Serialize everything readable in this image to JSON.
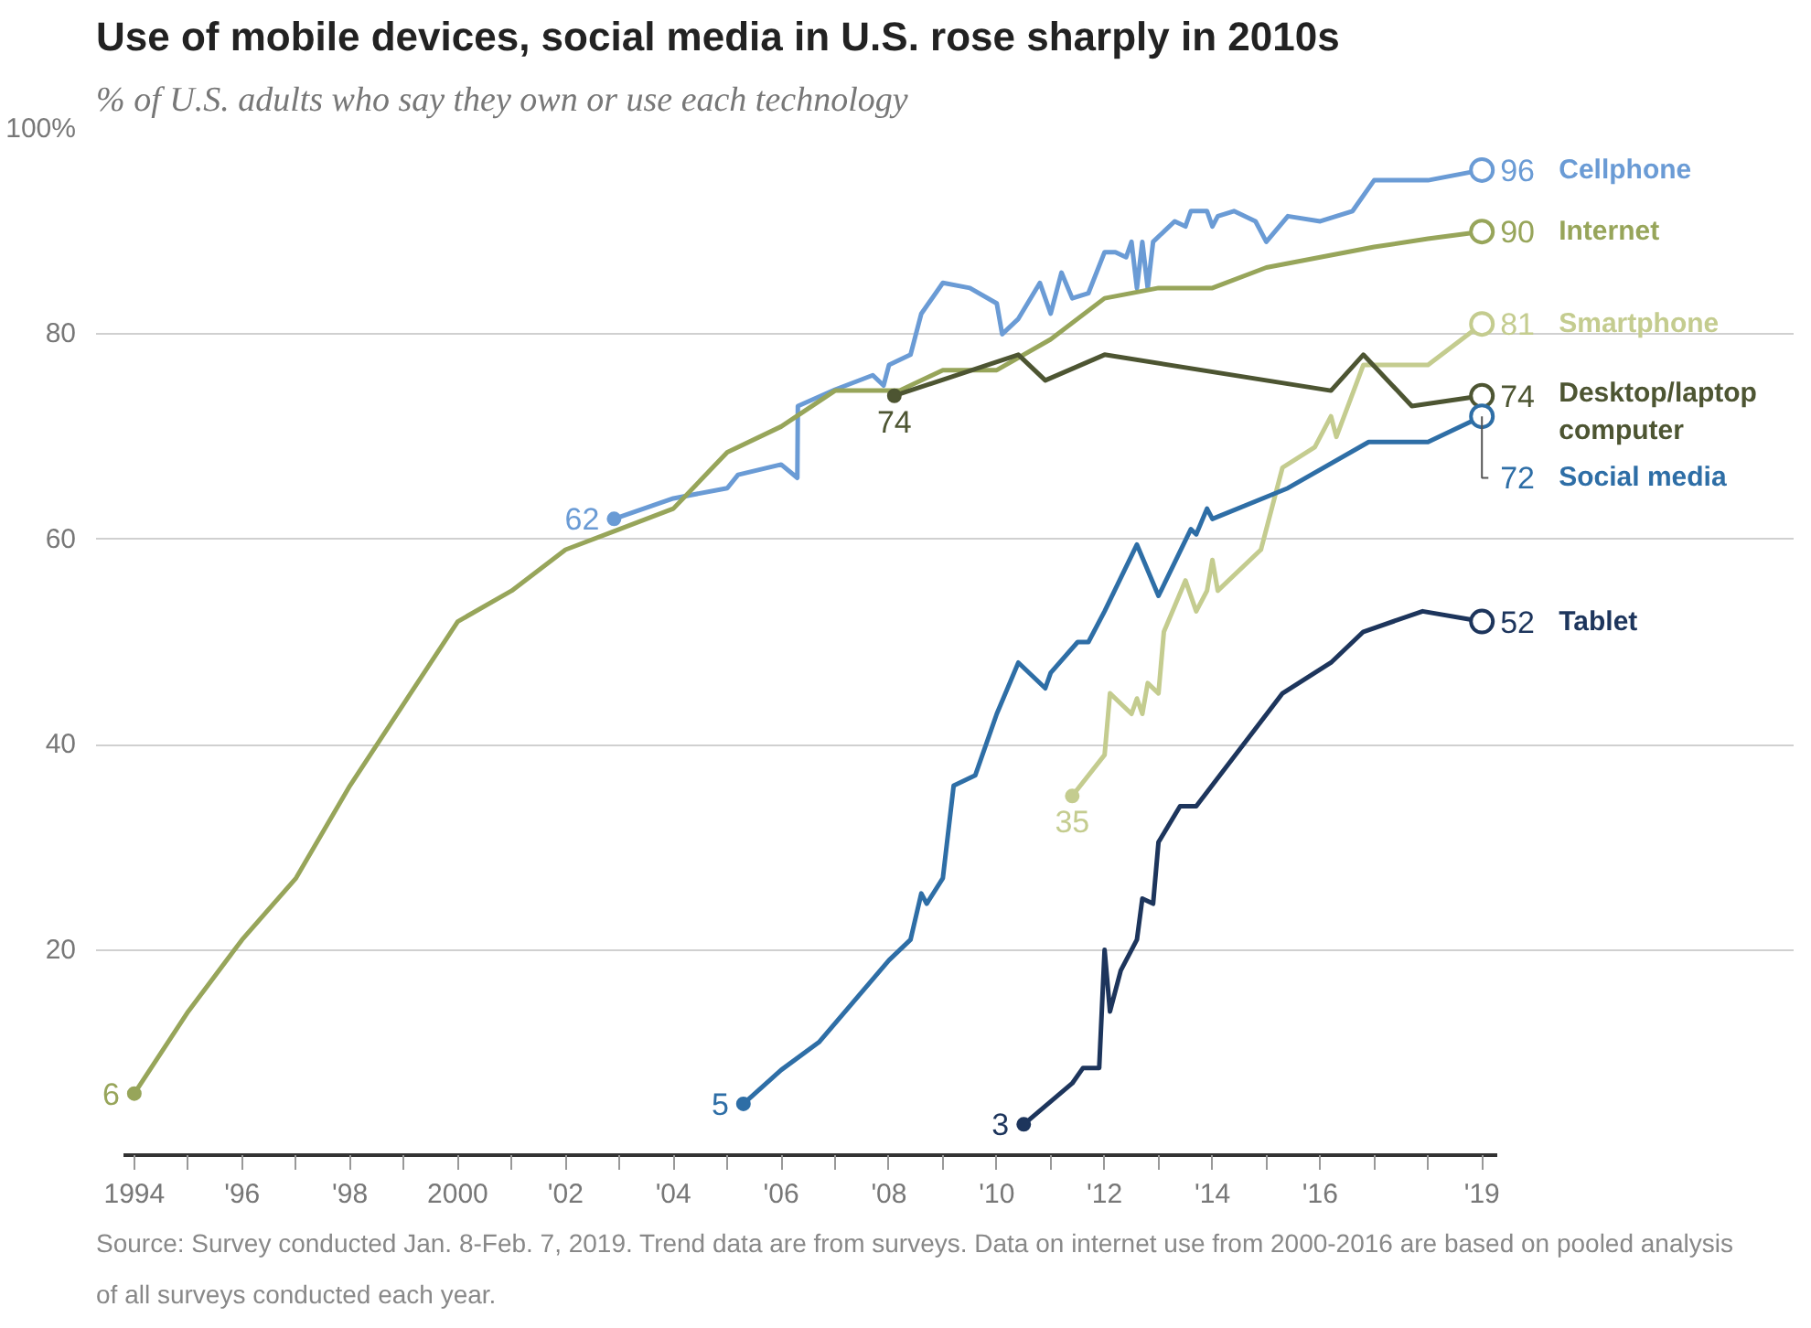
{
  "chart_data": {
    "type": "line",
    "title": "Use of mobile devices, social media in U.S. rose sharply in 2010s",
    "subtitle": "% of U.S. adults who say they own or use each technology",
    "xlim": [
      1993.8,
      2019.3
    ],
    "ylim": [
      0,
      100
    ],
    "xticks": [
      {
        "value": 1994,
        "label": "1994"
      },
      {
        "value": 1995,
        "label": null
      },
      {
        "value": 1996,
        "label": "'96"
      },
      {
        "value": 1997,
        "label": null
      },
      {
        "value": 1998,
        "label": "'98"
      },
      {
        "value": 1999,
        "label": null
      },
      {
        "value": 2000,
        "label": "2000"
      },
      {
        "value": 2001,
        "label": null
      },
      {
        "value": 2002,
        "label": "'02"
      },
      {
        "value": 2003,
        "label": null
      },
      {
        "value": 2004,
        "label": "'04"
      },
      {
        "value": 2005,
        "label": null
      },
      {
        "value": 2006,
        "label": "'06"
      },
      {
        "value": 2007,
        "label": null
      },
      {
        "value": 2008,
        "label": "'08"
      },
      {
        "value": 2009,
        "label": null
      },
      {
        "value": 2010,
        "label": "'10"
      },
      {
        "value": 2011,
        "label": null
      },
      {
        "value": 2012,
        "label": "'12"
      },
      {
        "value": 2013,
        "label": null
      },
      {
        "value": 2014,
        "label": "'14"
      },
      {
        "value": 2015,
        "label": null
      },
      {
        "value": 2016,
        "label": "'16"
      },
      {
        "value": 2017,
        "label": null
      },
      {
        "value": 2018,
        "label": null
      },
      {
        "value": 2019,
        "label": "'19"
      }
    ],
    "yticks": [
      {
        "value": 0,
        "label": null
      },
      20,
      40,
      60,
      80,
      {
        "value": 100,
        "label": "100%"
      }
    ],
    "grid": "y",
    "legend": false,
    "series": [
      {
        "name": "Cellphone",
        "color": "#6a9bd5",
        "x": [
          2002.9,
          2004,
          2005,
          2005.2,
          2006,
          2006.3,
          2006.31,
          2007,
          2007.7,
          2007.9,
          2008,
          2008.4,
          2008.6,
          2009,
          2009.5,
          2010,
          2010.1,
          2010.4,
          2010.8,
          2011,
          2011.2,
          2011.4,
          2011.7,
          2012,
          2012.2,
          2012.4,
          2012.5,
          2012.6,
          2012.7,
          2012.8,
          2012.9,
          2013.3,
          2013.5,
          2013.6,
          2013.9,
          2014,
          2014.1,
          2014.4,
          2014.8,
          2015,
          2015.4,
          2016,
          2016.6,
          2017,
          2018,
          2019
        ],
        "values": [
          62,
          64,
          65,
          66.3,
          67.3,
          66,
          73,
          74.6,
          76,
          75,
          77,
          78,
          82,
          85,
          84.5,
          83,
          80,
          81.5,
          85,
          82,
          86,
          83.5,
          84,
          88,
          88,
          87.5,
          89,
          84.5,
          89,
          84.5,
          89,
          91,
          90.5,
          92,
          92,
          90.5,
          91.5,
          92,
          91,
          89,
          91.5,
          91,
          92,
          95,
          95,
          96
        ]
      },
      {
        "name": "Internet",
        "color": "#97a55a",
        "x": [
          1994,
          1995,
          1996,
          1997,
          1998,
          1999,
          2000,
          2001,
          2002,
          2003,
          2004,
          2005,
          2006,
          2007,
          2008.2,
          2009,
          2010,
          2011,
          2012,
          2013,
          2014,
          2015,
          2016,
          2017,
          2018,
          2019
        ],
        "values": [
          6,
          14,
          21,
          27,
          36,
          44,
          52,
          55,
          59,
          61,
          63,
          68.5,
          71,
          74.5,
          74.5,
          76.5,
          76.5,
          79.5,
          83.5,
          84.5,
          84.5,
          86.5,
          87.5,
          88.5,
          89.3,
          90
        ]
      },
      {
        "name": "Smartphone",
        "color": "#c4cc8f",
        "x": [
          2011.4,
          2012,
          2012.1,
          2012.5,
          2012.6,
          2012.7,
          2012.8,
          2013,
          2013.1,
          2013.5,
          2013.7,
          2013.9,
          2014,
          2014.1,
          2014.9,
          2015.3,
          2015.9,
          2016.2,
          2016.3,
          2016.8,
          2017.3,
          2018,
          2019
        ],
        "values": [
          35,
          39,
          45,
          43,
          44.5,
          43,
          46,
          45,
          51,
          56,
          53,
          55,
          58,
          55,
          59,
          67,
          69,
          72,
          70,
          77,
          77,
          77,
          81
        ]
      },
      {
        "name": "Desktop/laptop computer",
        "color": "#4d5532",
        "x": [
          2008.1,
          2010.4,
          2010.9,
          2012,
          2016.2,
          2016.8,
          2017.7,
          2019
        ],
        "values": [
          74,
          78,
          75.5,
          78,
          74.5,
          78,
          73,
          74
        ]
      },
      {
        "name": "Social media",
        "color": "#2e6ea6",
        "x": [
          2005.3,
          2006,
          2006.7,
          2008,
          2008.4,
          2008.6,
          2008.7,
          2009,
          2009.2,
          2009.6,
          2010,
          2010.4,
          2010.9,
          2011,
          2011.5,
          2011.7,
          2012,
          2012.6,
          2013,
          2013.6,
          2013.7,
          2013.9,
          2014,
          2015.4,
          2016.9,
          2018,
          2019
        ],
        "values": [
          5,
          8.3,
          11,
          19,
          21,
          25.5,
          24.5,
          27,
          36,
          37,
          43,
          48,
          45.5,
          47,
          50,
          50,
          53,
          59.5,
          54.5,
          61,
          60.5,
          63,
          62,
          65,
          69.5,
          69.5,
          72
        ]
      },
      {
        "name": "Tablet",
        "color": "#1d355c",
        "x": [
          2010.5,
          2011.4,
          2011.6,
          2011.9,
          2012,
          2012.1,
          2012.3,
          2012.6,
          2012.7,
          2012.9,
          2013,
          2013.4,
          2013.7,
          2015.3,
          2016.2,
          2016.8,
          2017.9,
          2019
        ],
        "values": [
          3,
          7,
          8.5,
          8.5,
          20,
          14,
          18,
          21,
          25,
          24.5,
          30.5,
          34,
          34,
          45,
          48,
          51,
          53,
          52
        ]
      }
    ],
    "annotations": [
      {
        "text": "96",
        "x": 2019,
        "y": 96
      },
      {
        "text": "90",
        "x": 2019,
        "y": 90
      },
      {
        "text": "81",
        "x": 2019,
        "y": 81
      },
      {
        "text": "74",
        "x": 2019,
        "y": 74
      },
      {
        "text": "72",
        "x": 2019,
        "y": 72
      },
      {
        "text": "52",
        "x": 2019,
        "y": 52
      },
      {
        "text": "62",
        "x": 2002.9,
        "y": 62
      },
      {
        "text": "6",
        "x": 1994,
        "y": 6
      },
      {
        "text": "35",
        "x": 2011.4,
        "y": 35
      },
      {
        "text": "74",
        "x": 2008.1,
        "y": 74
      },
      {
        "text": "5",
        "x": 2005.3,
        "y": 5
      },
      {
        "text": "3",
        "x": 2010.5,
        "y": 3
      },
      "Source: Survey conducted Jan. 8-Feb. 7, 2019. Trend data are from surveys. Data on internet use from 2000-2016 are based on pooled analysis of all surveys conducted each year."
    ]
  }
}
